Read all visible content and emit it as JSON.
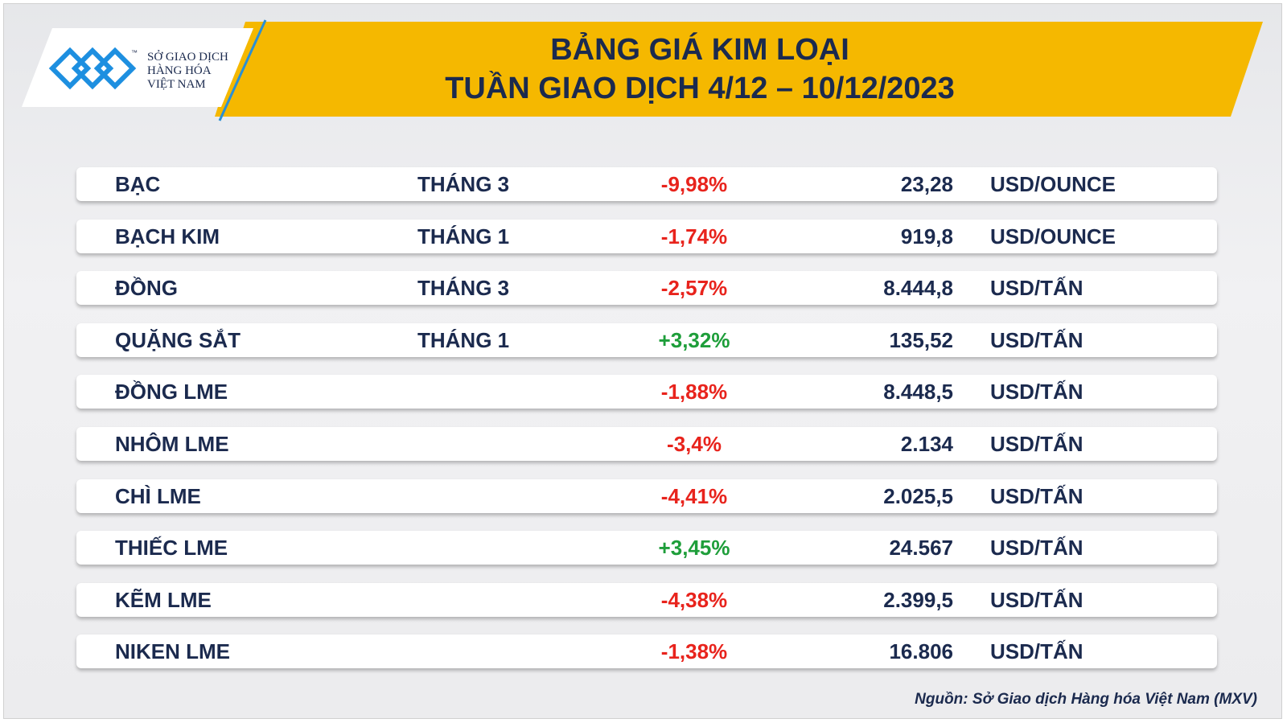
{
  "logo": {
    "lines": [
      "SỞ GIAO DỊCH",
      "HÀNG HÓA",
      "VIỆT NAM"
    ],
    "trademark": "™"
  },
  "header": {
    "title_lines": [
      "BẢNG GIÁ KIM LOẠI",
      "TUẦN GIAO DỊCH 4/12 – 10/12/2023"
    ]
  },
  "table": {
    "rows": [
      {
        "name": "BẠC",
        "month": "THÁNG 3",
        "change": "-9,98%",
        "price": "23,28",
        "unit": "USD/OUNCE"
      },
      {
        "name": "BẠCH KIM",
        "month": "THÁNG 1",
        "change": "-1,74%",
        "price": "919,8",
        "unit": "USD/OUNCE"
      },
      {
        "name": "ĐỒNG",
        "month": "THÁNG 3",
        "change": "-2,57%",
        "price": "8.444,8",
        "unit": "USD/TẤN"
      },
      {
        "name": "QUẶNG SẮT",
        "month": "THÁNG 1",
        "change": "+3,32%",
        "price": "135,52",
        "unit": "USD/TẤN"
      },
      {
        "name": "ĐỒNG LME",
        "change": "-1,88%",
        "price": "8.448,5",
        "unit": "USD/TẤN"
      },
      {
        "name": "NHÔM LME",
        "change": "-3,4%",
        "price": "2.134",
        "unit": "USD/TẤN"
      },
      {
        "name": "CHÌ LME",
        "change": "-4,41%",
        "price": "2.025,5",
        "unit": "USD/TẤN"
      },
      {
        "name": "THIẾC LME",
        "change": "+3,45%",
        "price": "24.567",
        "unit": "USD/TẤN"
      },
      {
        "name": "KẼM LME",
        "change": "-4,38%",
        "price": "2.399,5",
        "unit": "USD/TẤN"
      },
      {
        "name": "NIKEN LME",
        "change": "-1,38%",
        "price": "16.806",
        "unit": "USD/TẤN"
      }
    ]
  },
  "footer": {
    "source": "Nguồn: Sở Giao dịch Hàng hóa Việt Nam (MXV)"
  }
}
